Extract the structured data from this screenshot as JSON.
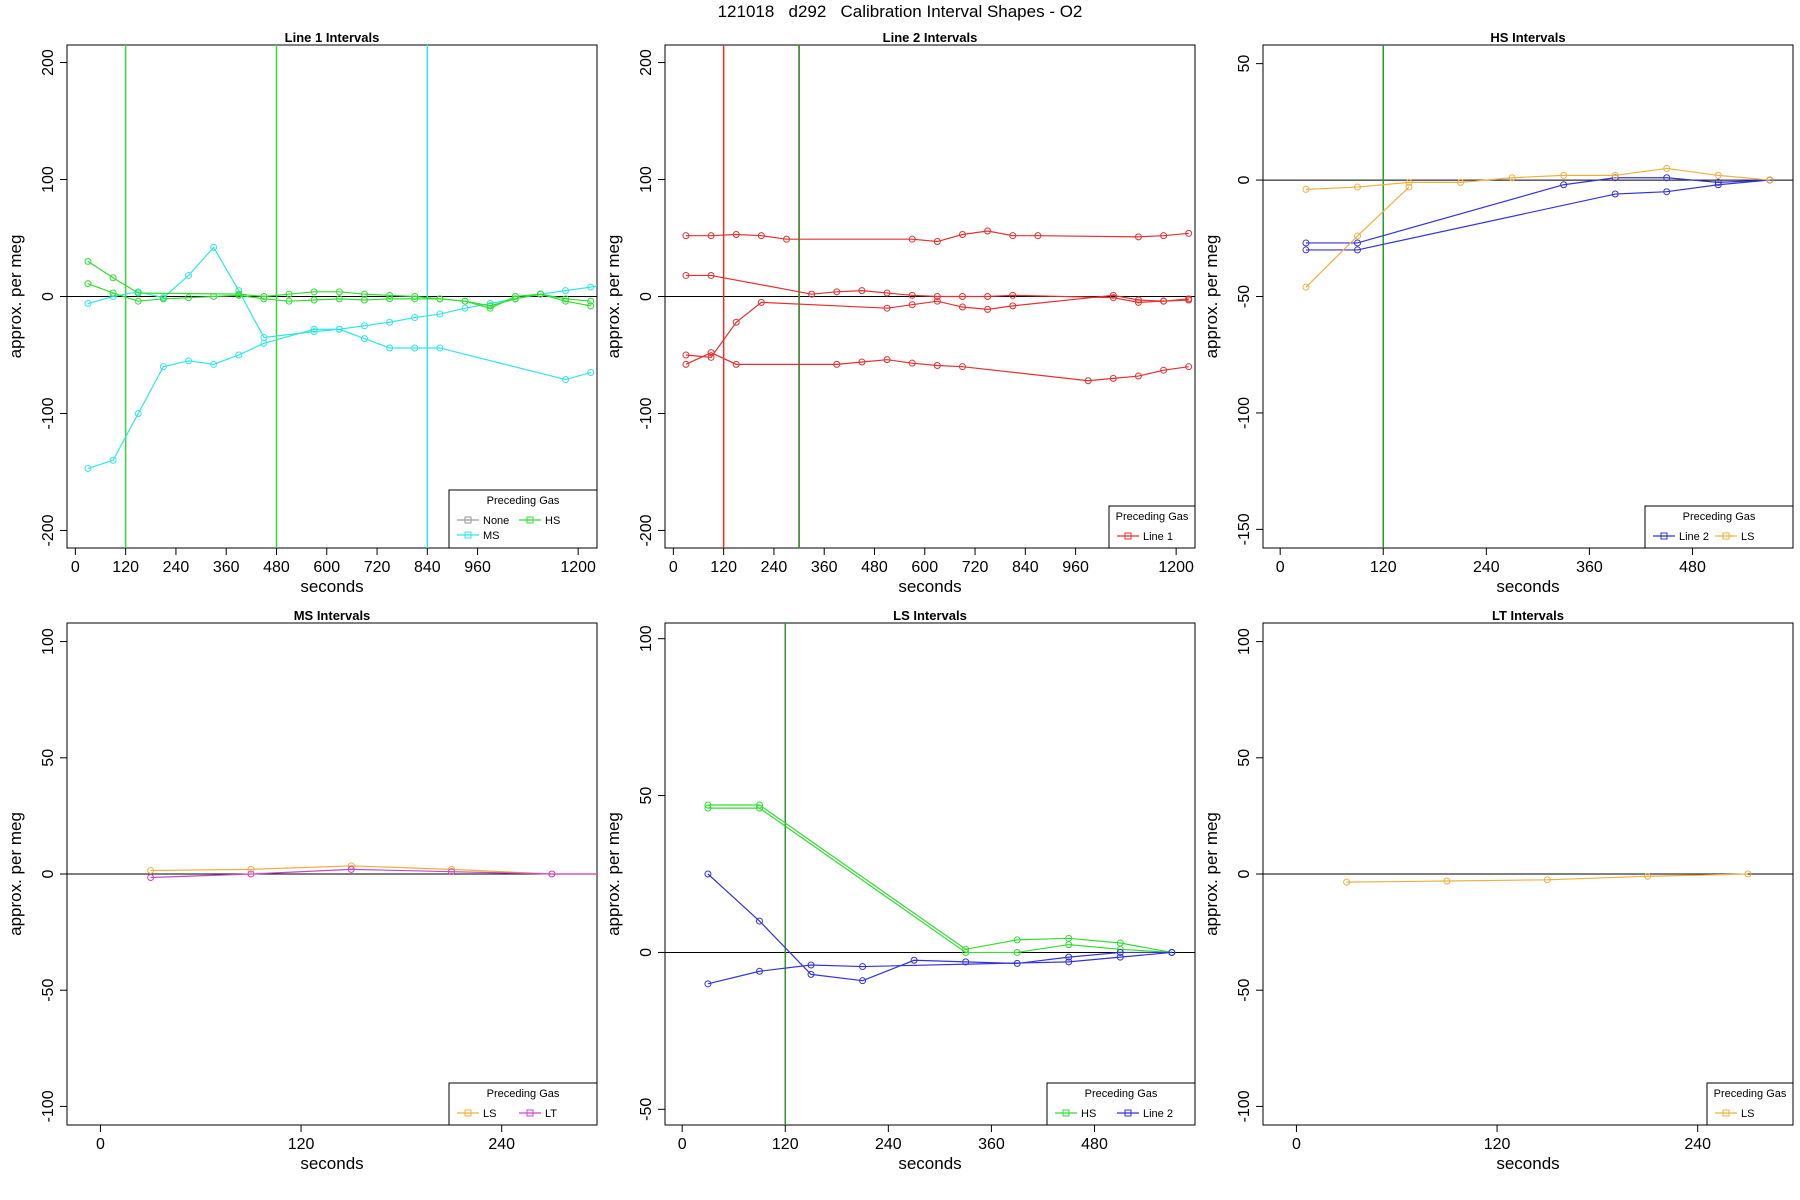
{
  "figure": {
    "title": "121018   d292   Calibration Interval Shapes - O2"
  },
  "colors": {
    "None": "#999999",
    "HS": "#33dd33",
    "MS": "#33e5e5",
    "Line 1": "#e83030",
    "Line 2": "#3333dd",
    "LS": "#f0b040",
    "LT": "#cc44cc",
    "zero_line": "#000000",
    "vline_green": "#2a9a2a"
  },
  "chart_data": [
    {
      "type": "line",
      "title": "Line 1 Intervals",
      "xlabel": "seconds",
      "ylabel": "approx. per meg",
      "xlim": [
        -20,
        1245
      ],
      "ylim": [
        -215,
        215
      ],
      "xticks": [
        0,
        120,
        240,
        360,
        480,
        600,
        720,
        840,
        960,
        1200
      ],
      "yticks": [
        -200,
        -100,
        0,
        100,
        200
      ],
      "vlines": [
        {
          "x": 120,
          "series": "HS"
        },
        {
          "x": 480,
          "series": "HS"
        },
        {
          "x": 840,
          "series": "MS"
        }
      ],
      "legend": {
        "title": "Preceding Gas",
        "position": "bottom-right",
        "entries": [
          "None",
          "HS",
          "MS"
        ]
      },
      "series": [
        {
          "name": "MS",
          "x": [
            30,
            90,
            150,
            210,
            270,
            330,
            390,
            450,
            570,
            630,
            690,
            750,
            810,
            870,
            930,
            990,
            1050,
            1110,
            1170,
            1230,
            1260
          ],
          "y": [
            -6,
            0,
            4,
            -1,
            18,
            42,
            5,
            -35,
            -30,
            -28,
            -25,
            -22,
            -18,
            -15,
            -10,
            -6,
            -2,
            2,
            5,
            8,
            10
          ]
        },
        {
          "name": "MS",
          "x": [
            30,
            90,
            150,
            210,
            270,
            330,
            390,
            450,
            570,
            630,
            690,
            750,
            810,
            870,
            1170,
            1230
          ],
          "y": [
            -147,
            -140,
            -100,
            -60,
            -55,
            -58,
            -50,
            -40,
            -28,
            -28,
            -36,
            -44,
            -44,
            -44,
            -71,
            -65
          ]
        },
        {
          "name": "HS",
          "x": [
            30,
            90,
            150,
            390,
            450,
            510,
            570,
            630,
            690,
            750,
            810,
            870,
            930,
            990,
            1050,
            1110,
            1170,
            1230
          ],
          "y": [
            30,
            16,
            3,
            2,
            0,
            2,
            4,
            4,
            2,
            1,
            0,
            -2,
            -4,
            -8,
            -2,
            2,
            -2,
            -4
          ]
        },
        {
          "name": "HS",
          "x": [
            30,
            90,
            150,
            210,
            270,
            330,
            390,
            450,
            510,
            570,
            630,
            690,
            750,
            810,
            870,
            930,
            990,
            1050,
            1110,
            1170,
            1230
          ],
          "y": [
            11,
            3,
            -4,
            -2,
            -1,
            0,
            1,
            -2,
            -4,
            -3,
            -2,
            -3,
            -2,
            -2,
            -2,
            -4,
            -10,
            0,
            2,
            -4,
            -8
          ]
        }
      ]
    },
    {
      "type": "line",
      "title": "Line 2 Intervals",
      "xlabel": "seconds",
      "ylabel": "approx. per meg",
      "xlim": [
        -20,
        1245
      ],
      "ylim": [
        -215,
        215
      ],
      "xticks": [
        0,
        120,
        240,
        360,
        480,
        600,
        720,
        840,
        960,
        1200
      ],
      "yticks": [
        -200,
        -100,
        0,
        100,
        200
      ],
      "vlines": [
        {
          "x": 120,
          "series": "Line 1"
        },
        {
          "x": 300,
          "series": "Line 1"
        },
        {
          "x": 300,
          "series": "HS"
        }
      ],
      "legend": {
        "title": "Preceding Gas",
        "position": "bottom-right",
        "entries": [
          "Line 1"
        ]
      },
      "series": [
        {
          "name": "Line 1",
          "x": [
            30,
            90,
            150,
            210,
            270,
            570,
            630,
            690,
            750,
            810,
            870,
            1110,
            1170,
            1230
          ],
          "y": [
            52,
            52,
            53,
            52,
            49,
            49,
            47,
            53,
            56,
            52,
            52,
            51,
            52,
            54
          ]
        },
        {
          "name": "Line 1",
          "x": [
            30,
            90,
            330,
            390,
            450,
            510,
            570,
            630,
            690,
            750,
            810,
            1050,
            1110,
            1170,
            1230
          ],
          "y": [
            18,
            18,
            2,
            4,
            5,
            3,
            1,
            0,
            0,
            0,
            1,
            -1,
            -5,
            -4,
            -3
          ]
        },
        {
          "name": "Line 1",
          "x": [
            30,
            90,
            150,
            210,
            510,
            570,
            630,
            690,
            750,
            810,
            1050,
            1110,
            1170,
            1230
          ],
          "y": [
            -50,
            -52,
            -22,
            -5,
            -10,
            -7,
            -4,
            -9,
            -11,
            -8,
            1,
            -3,
            -4,
            -2
          ]
        },
        {
          "name": "Line 1",
          "x": [
            30,
            90,
            150,
            390,
            450,
            510,
            570,
            630,
            690,
            990,
            1050,
            1110,
            1170,
            1230
          ],
          "y": [
            -58,
            -48,
            -58,
            -58,
            -56,
            -54,
            -57,
            -59,
            -60,
            -72,
            -70,
            -68,
            -63,
            -60
          ]
        }
      ]
    },
    {
      "type": "line",
      "title": "HS Intervals",
      "xlabel": "seconds",
      "ylabel": "approx. per meg",
      "xlim": [
        -20,
        597
      ],
      "ylim": [
        -158,
        58
      ],
      "xticks": [
        0,
        120,
        240,
        360,
        480
      ],
      "yticks": [
        -150,
        -100,
        -50,
        0,
        50
      ],
      "vlines": [
        {
          "x": 120,
          "series": "HS"
        }
      ],
      "legend": {
        "title": "Preceding Gas",
        "position": "bottom-right",
        "entries": [
          "Line 2",
          "LS"
        ]
      },
      "series": [
        {
          "name": "Line 2",
          "x": [
            30,
            90,
            330,
            390,
            450,
            510,
            570
          ],
          "y": [
            -27,
            -27,
            -2,
            1,
            1,
            -1,
            0
          ]
        },
        {
          "name": "Line 2",
          "x": [
            30,
            90,
            390,
            450,
            510,
            570
          ],
          "y": [
            -30,
            -30,
            -6,
            -5,
            -2,
            0
          ]
        },
        {
          "name": "LS",
          "x": [
            30,
            90,
            150,
            210,
            270,
            330,
            390,
            450,
            510,
            570
          ],
          "y": [
            -4,
            -3,
            -1,
            -1,
            1,
            2,
            2,
            5,
            2,
            0
          ]
        },
        {
          "name": "LS",
          "x": [
            30,
            90,
            150
          ],
          "y": [
            -46,
            -24,
            -3
          ]
        }
      ]
    },
    {
      "type": "line",
      "title": "MS Intervals",
      "xlabel": "seconds",
      "ylabel": "approx. per meg",
      "xlim": [
        -20,
        297
      ],
      "ylim": [
        -108,
        108
      ],
      "xticks": [
        0,
        120,
        240
      ],
      "yticks": [
        -100,
        -50,
        0,
        50,
        100
      ],
      "vlines": [],
      "legend": {
        "title": "Preceding Gas",
        "position": "bottom-right",
        "entries": [
          "LS",
          "LT"
        ]
      },
      "series": [
        {
          "name": "LS",
          "x": [
            30,
            90,
            150,
            210,
            270,
            330
          ],
          "y": [
            1.5,
            2,
            3.5,
            2,
            0,
            0
          ]
        },
        {
          "name": "LT",
          "x": [
            30,
            90,
            150,
            210,
            270,
            330
          ],
          "y": [
            -1.5,
            0,
            2,
            1,
            0,
            0
          ]
        }
      ]
    },
    {
      "type": "line",
      "title": "LS Intervals",
      "xlabel": "seconds",
      "ylabel": "approx. per meg",
      "xlim": [
        -20,
        597
      ],
      "ylim": [
        -55,
        105
      ],
      "xticks": [
        0,
        120,
        240,
        360,
        480
      ],
      "yticks": [
        -50,
        0,
        50,
        100
      ],
      "vlines": [
        {
          "x": 120,
          "series": "HS"
        }
      ],
      "legend": {
        "title": "Preceding Gas",
        "position": "bottom-right",
        "entries": [
          "HS",
          "Line 2"
        ]
      },
      "series": [
        {
          "name": "HS",
          "x": [
            30,
            90,
            330,
            390,
            450,
            510,
            570
          ],
          "y": [
            47,
            47,
            1,
            4,
            4.5,
            3,
            0
          ]
        },
        {
          "name": "HS",
          "x": [
            30,
            90,
            330,
            390,
            450,
            510,
            570
          ],
          "y": [
            46,
            46,
            0,
            0,
            2.5,
            1,
            0
          ]
        },
        {
          "name": "Line 2",
          "x": [
            30,
            90,
            150,
            210,
            270,
            330,
            390,
            450,
            510,
            570
          ],
          "y": [
            25,
            10,
            -7,
            -9,
            -2.5,
            -3,
            -3.5,
            -1.5,
            0,
            0
          ]
        },
        {
          "name": "Line 2",
          "x": [
            30,
            90,
            150,
            210,
            450,
            510,
            570
          ],
          "y": [
            -10,
            -6,
            -4,
            -4.5,
            -3,
            -1.5,
            0
          ]
        }
      ]
    },
    {
      "type": "line",
      "title": "LT Intervals",
      "xlabel": "seconds",
      "ylabel": "approx. per meg",
      "xlim": [
        -20,
        297
      ],
      "ylim": [
        -108,
        108
      ],
      "xticks": [
        0,
        120,
        240
      ],
      "yticks": [
        -100,
        -50,
        0,
        50,
        100
      ],
      "vlines": [],
      "legend": {
        "title": "Preceding Gas",
        "position": "bottom-right",
        "entries": [
          "LS"
        ]
      },
      "series": [
        {
          "name": "LS",
          "x": [
            30,
            90,
            150,
            210,
            270
          ],
          "y": [
            -3.5,
            -3,
            -2.5,
            -1,
            0
          ]
        }
      ]
    }
  ]
}
